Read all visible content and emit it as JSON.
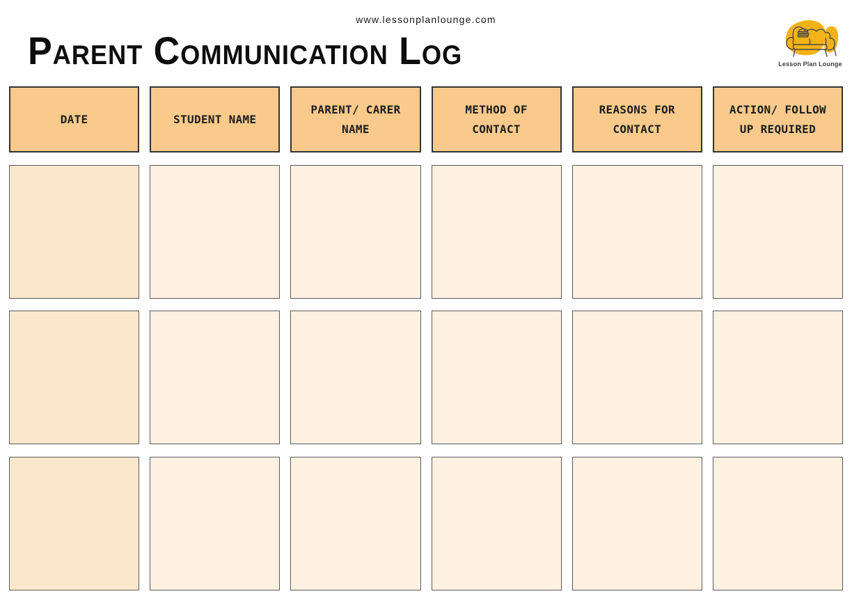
{
  "page": {
    "website_url": "www.lessonplanlounge.com",
    "title": "Parent Communication Log"
  },
  "logo": {
    "brand_name": "Lesson Plan Lounge",
    "icon": "couch-with-books-icon",
    "accent_color": "#F3B318",
    "line_color": "#4a4a4a"
  },
  "table": {
    "columns": [
      {
        "label": "DATE"
      },
      {
        "label": "STUDENT NAME"
      },
      {
        "label": "PARENT/ CARER NAME"
      },
      {
        "label": "METHOD OF CONTACT"
      },
      {
        "label": "REASONS FOR CONTACT"
      },
      {
        "label": "ACTION/ FOLLOW UP REQUIRED"
      }
    ],
    "rows": [
      [
        "",
        "",
        "",
        "",
        "",
        ""
      ],
      [
        "",
        "",
        "",
        "",
        "",
        ""
      ],
      [
        "",
        "",
        "",
        "",
        "",
        ""
      ]
    ],
    "colors": {
      "header_bg": "#F9CA8C",
      "first_column_bg": "#FBE7CB",
      "cell_bg": "#FEF1E2",
      "header_border": "#333333",
      "cell_border": "#5a5a5a"
    }
  }
}
